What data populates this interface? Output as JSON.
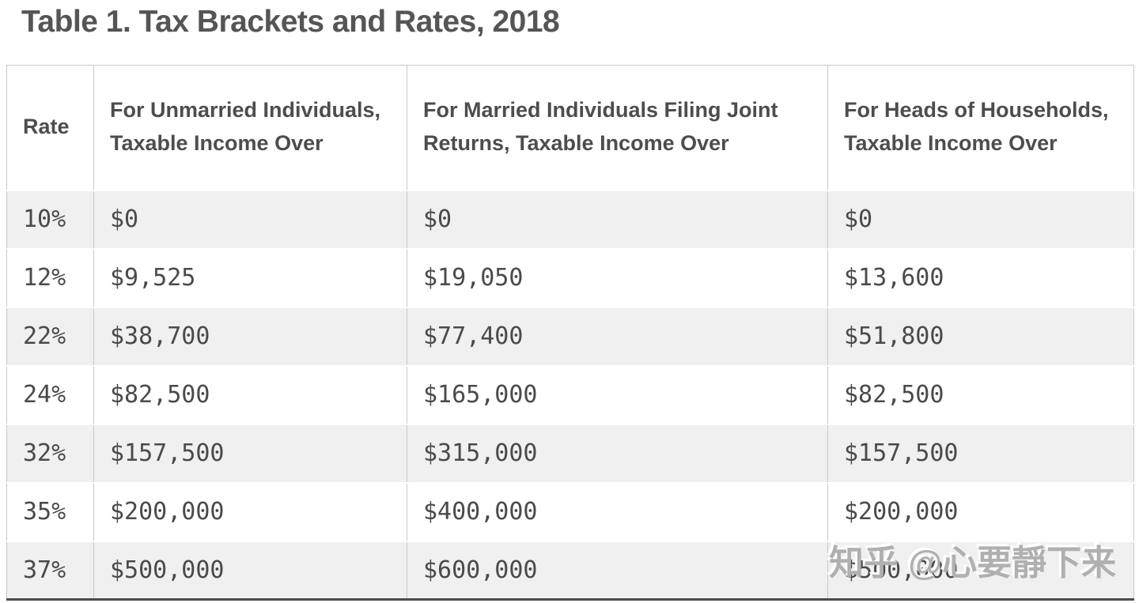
{
  "title": "Table 1. Tax Brackets and Rates, 2018",
  "chart_data": {
    "type": "table",
    "title": "Table 1. Tax Brackets and Rates, 2018",
    "columns": [
      "Rate",
      "For Unmarried Individuals, Taxable Income Over",
      "For Married Individuals Filing Joint Returns, Taxable Income Over",
      "For Heads of Households, Taxable Income Over"
    ],
    "rows": [
      [
        "10%",
        "$0",
        "$0",
        "$0"
      ],
      [
        "12%",
        "$9,525",
        "$19,050",
        "$13,600"
      ],
      [
        "22%",
        "$38,700",
        "$77,400",
        "$51,800"
      ],
      [
        "24%",
        "$82,500",
        "$165,000",
        "$82,500"
      ],
      [
        "32%",
        "$157,500",
        "$315,000",
        "$157,500"
      ],
      [
        "35%",
        "$200,000",
        "$400,000",
        "$200,000"
      ],
      [
        "37%",
        "$500,000",
        "$600,000",
        "$500,000"
      ]
    ]
  },
  "watermark": {
    "text": "知乎 @心要靜下来"
  },
  "colors": {
    "title_text": "#555555",
    "cell_text": "#4a4a4a",
    "header_text": "#4d4d4d",
    "row_stripe": "#f0f0f0",
    "grid_border": "#c8c8c8",
    "table_bottom_border": "#4d4d4d",
    "watermark_text": "#b0b0b0"
  }
}
